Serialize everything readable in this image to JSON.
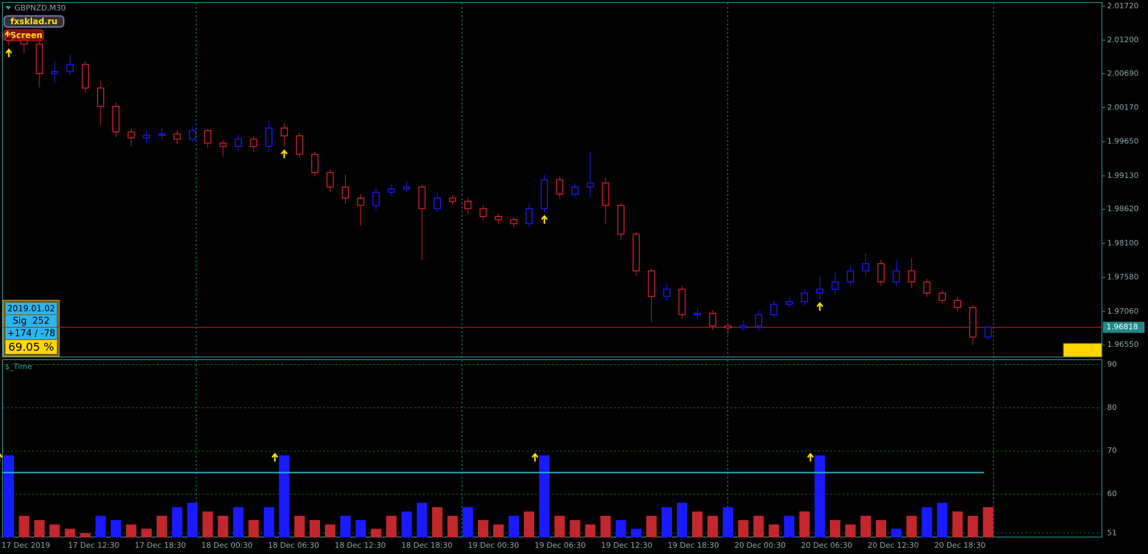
{
  "header": {
    "symbol": "GBPNZD,M30",
    "brand": "fxsklad.ru",
    "screen_button": "Screen"
  },
  "info_box": {
    "date": "2019.01.02",
    "sig": "Sig  252",
    "pips": "+174 / -78",
    "rate": "69.05 %"
  },
  "time_axis": {
    "labels": [
      "17 Dec 2019",
      "17 Dec 12:30",
      "17 Dec 18:30",
      "18 Dec 00:30",
      "18 Dec 06:30",
      "18 Dec 12:30",
      "18 Dec 18:30",
      "19 Dec 00:30",
      "19 Dec 06:30",
      "19 Dec 12:30",
      "19 Dec 18:30",
      "20 Dec 00:30",
      "20 Dec 06:30",
      "20 Dec 12:30",
      "20 Dec 18:30"
    ]
  },
  "chart_data": [
    {
      "type": "candlestick",
      "up_color": "#1a1aff",
      "down_color": "#d0202a",
      "grid": true,
      "open": [
        2.0125,
        2.012,
        2.0114,
        2.0069,
        2.0072,
        2.0083,
        2.0047,
        2.0019,
        1.998,
        1.9971,
        1.9975,
        1.9977,
        1.9969,
        1.9982,
        1.9963,
        1.9958,
        1.9969,
        1.9958,
        1.9986,
        1.9974,
        1.9946,
        1.9918,
        1.9896,
        1.9879,
        1.9868,
        1.9888,
        1.9893,
        1.9896,
        1.9863,
        1.9879,
        1.9874,
        1.9863,
        1.9851,
        1.9846,
        1.984,
        1.9863,
        1.9907,
        1.9885,
        1.9896,
        1.9902,
        1.9868,
        1.9824,
        1.9768,
        1.9729,
        1.974,
        1.9701,
        1.9703,
        1.9684,
        1.9681,
        1.9684,
        1.9701,
        1.9717,
        1.9721,
        1.9734,
        1.974,
        1.9751,
        1.9768,
        1.9779,
        1.9751,
        1.9768,
        1.9751,
        1.9734,
        1.9723,
        1.9712,
        1.9667
      ],
      "high": [
        2.0135,
        2.0126,
        2.0118,
        2.0088,
        2.0098,
        2.0088,
        2.0058,
        2.0025,
        1.9985,
        1.9982,
        1.9985,
        1.9983,
        1.9989,
        1.9985,
        1.9968,
        1.9976,
        1.9974,
        1.9998,
        1.9994,
        1.9979,
        1.995,
        1.9923,
        1.9915,
        1.9885,
        1.9895,
        1.99,
        1.9905,
        1.99,
        1.9888,
        1.9884,
        1.988,
        1.9868,
        1.9855,
        1.985,
        1.987,
        1.9915,
        1.9912,
        1.9902,
        1.995,
        1.991,
        1.9872,
        1.9828,
        1.9772,
        1.975,
        1.9745,
        1.9712,
        1.9708,
        1.9688,
        1.9692,
        1.9708,
        1.9722,
        1.9728,
        1.974,
        1.976,
        1.9765,
        1.9775,
        1.9795,
        1.9785,
        1.9785,
        1.9788,
        1.9756,
        1.9738,
        1.9728,
        1.9716,
        1.9685
      ],
      "low": [
        2.0112,
        2.01,
        2.0048,
        2.0055,
        2.0066,
        2.004,
        1.999,
        1.9972,
        1.9958,
        1.9964,
        1.9968,
        1.9962,
        1.9965,
        1.9955,
        1.9942,
        1.9952,
        1.995,
        1.995,
        1.9958,
        1.994,
        1.9912,
        1.9888,
        1.987,
        1.9837,
        1.986,
        1.9882,
        1.9888,
        1.9785,
        1.9858,
        1.9868,
        1.9855,
        1.9845,
        1.984,
        1.9834,
        1.9835,
        1.9858,
        1.9878,
        1.988,
        1.988,
        1.984,
        1.9815,
        1.976,
        1.969,
        1.9722,
        1.9695,
        1.9695,
        1.9678,
        1.9672,
        1.9676,
        1.9676,
        1.9696,
        1.9712,
        1.9715,
        1.9725,
        1.9732,
        1.9745,
        1.976,
        1.9745,
        1.9745,
        1.9742,
        1.9728,
        1.9718,
        1.9705,
        1.9655,
        1.9662
      ],
      "close": [
        2.012,
        2.0114,
        2.0069,
        2.0072,
        2.0083,
        2.0047,
        2.0019,
        1.998,
        1.9971,
        1.9975,
        1.9977,
        1.9969,
        1.9982,
        1.9963,
        1.9958,
        1.9969,
        1.9958,
        1.9986,
        1.9974,
        1.9946,
        1.9918,
        1.9896,
        1.9879,
        1.9868,
        1.9888,
        1.9893,
        1.9896,
        1.9863,
        1.9879,
        1.9874,
        1.9863,
        1.9851,
        1.9846,
        1.984,
        1.9863,
        1.9907,
        1.9885,
        1.9896,
        1.9902,
        1.9868,
        1.9824,
        1.9768,
        1.9729,
        1.974,
        1.9701,
        1.9703,
        1.9684,
        1.9681,
        1.9684,
        1.9701,
        1.9717,
        1.9721,
        1.9734,
        1.974,
        1.9751,
        1.9768,
        1.9779,
        1.9751,
        1.9768,
        1.9751,
        1.9734,
        1.9723,
        1.9712,
        1.9667,
        1.9682
      ],
      "ylim": [
        1.9636,
        2.0178
      ],
      "yticks": [
        {
          "value": 2.0172,
          "label": "2.01720"
        },
        {
          "value": 2.012,
          "label": "2.01200"
        },
        {
          "value": 2.0069,
          "label": "2.00690"
        },
        {
          "value": 2.0017,
          "label": "2.00170"
        },
        {
          "value": 1.9965,
          "label": "1.99650"
        },
        {
          "value": 1.9913,
          "label": "1.99130"
        },
        {
          "value": 1.9862,
          "label": "1.98620"
        },
        {
          "value": 1.981,
          "label": "1.98100"
        },
        {
          "value": 1.9758,
          "label": "1.97580"
        },
        {
          "value": 1.9706,
          "label": "1.97060"
        },
        {
          "value": 1.9655,
          "label": "1.96550"
        }
      ],
      "current_price": 1.96818,
      "signals": [
        0,
        18,
        35,
        53
      ]
    },
    {
      "type": "bar",
      "title": "$_Time",
      "ylim": [
        50,
        91.2
      ],
      "yticks": [
        90,
        80,
        70,
        60,
        51
      ],
      "level": 65,
      "signals": [
        0,
        18,
        35,
        53
      ],
      "values": [
        69,
        55,
        54,
        53,
        52,
        51,
        55,
        54,
        53,
        52,
        55,
        57,
        58,
        56,
        55,
        57,
        54,
        57,
        69,
        55,
        54,
        53,
        55,
        54,
        52,
        55,
        56,
        58,
        57,
        55,
        57,
        54,
        53,
        55,
        56,
        69,
        55,
        54,
        53,
        55,
        54,
        52,
        55,
        57,
        58,
        56,
        55,
        57,
        54,
        55,
        53,
        55,
        56,
        69,
        54,
        53,
        55,
        54,
        52,
        55,
        57,
        58,
        56,
        55,
        57
      ],
      "colors": [
        "#1a1aff",
        "#c1272d",
        "#c1272d",
        "#c1272d",
        "#c1272d",
        "#c1272d",
        "#1a1aff",
        "#1a1aff",
        "#c1272d",
        "#c1272d",
        "#c1272d",
        "#1a1aff",
        "#1a1aff",
        "#c1272d",
        "#c1272d",
        "#1a1aff",
        "#c1272d",
        "#1a1aff",
        "#1a1aff",
        "#c1272d",
        "#c1272d",
        "#c1272d",
        "#1a1aff",
        "#1a1aff",
        "#c1272d",
        "#c1272d",
        "#1a1aff",
        "#1a1aff",
        "#c1272d",
        "#c1272d",
        "#1a1aff",
        "#c1272d",
        "#c1272d",
        "#1a1aff",
        "#c1272d",
        "#1a1aff",
        "#c1272d",
        "#c1272d",
        "#c1272d",
        "#c1272d",
        "#1a1aff",
        "#1a1aff",
        "#c1272d",
        "#1a1aff",
        "#1a1aff",
        "#c1272d",
        "#c1272d",
        "#1a1aff",
        "#c1272d",
        "#c1272d",
        "#c1272d",
        "#1a1aff",
        "#c1272d",
        "#1a1aff",
        "#c1272d",
        "#c1272d",
        "#c1272d",
        "#c1272d",
        "#1a1aff",
        "#c1272d",
        "#1a1aff",
        "#1a1aff",
        "#c1272d",
        "#c1272d",
        "#c1272d"
      ]
    }
  ]
}
